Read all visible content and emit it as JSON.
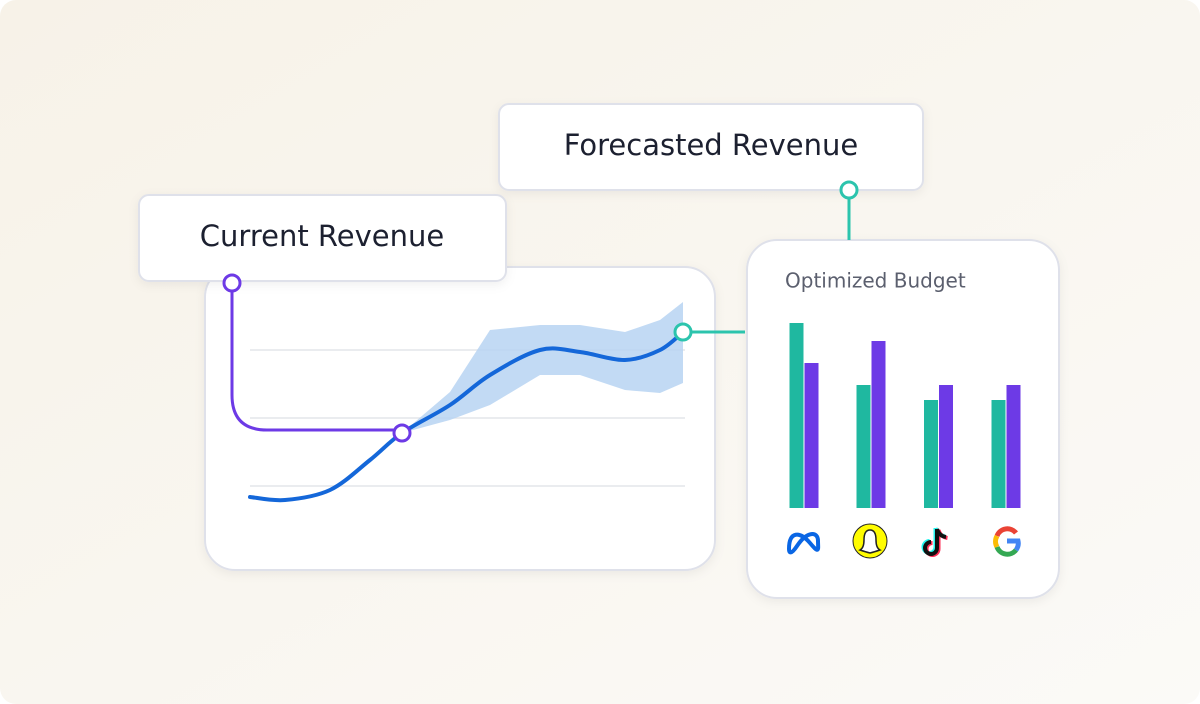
{
  "labels": {
    "current": "Current Revenue",
    "forecasted": "Forecasted Revenue"
  },
  "chart_data": [
    {
      "type": "line",
      "x": [
        0,
        35,
        80,
        120,
        152,
        200,
        240,
        290,
        330,
        375,
        410,
        433
      ],
      "values": [
        23,
        20,
        30,
        60,
        87,
        115,
        145,
        170,
        168,
        160,
        170,
        188
      ],
      "upper": [
        null,
        null,
        null,
        null,
        87,
        128,
        190,
        195,
        195,
        188,
        200,
        218
      ],
      "lower": [
        null,
        null,
        null,
        null,
        87,
        100,
        115,
        145,
        145,
        130,
        127,
        137
      ],
      "color": "#1467d9",
      "band_color": "#b7d3f2",
      "xlim": [
        0,
        433
      ],
      "ylim": [
        0,
        220
      ],
      "yticks": [
        34,
        102,
        170
      ],
      "grid": true
    },
    {
      "type": "bar",
      "title": "Optimized Budget",
      "categories": [
        null,
        null,
        null,
        null
      ],
      "series": [
        {
          "color": "#1fb8a0",
          "values": [
            185,
            123,
            108,
            108
          ]
        },
        {
          "color": "#6d3ae6",
          "values": [
            145,
            167,
            123,
            123
          ]
        }
      ],
      "ylim": [
        0,
        200
      ]
    }
  ]
}
